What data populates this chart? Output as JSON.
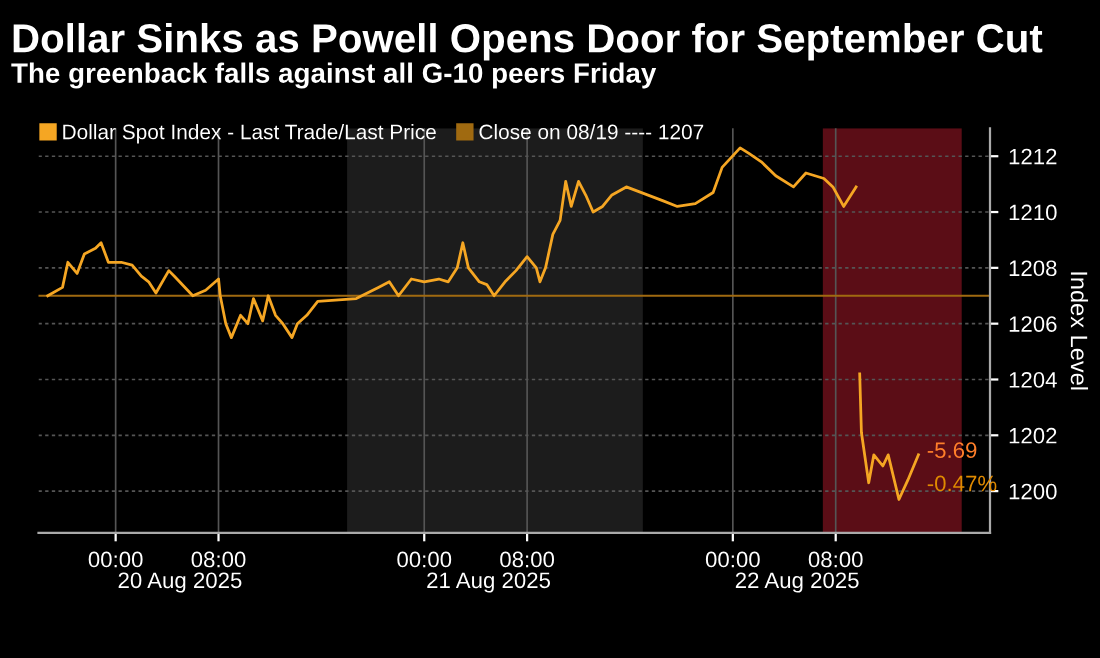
{
  "chart_data": {
    "type": "line",
    "title": "Dollar Sinks as Powell Opens Door for September Cut",
    "subtitle": "The greenback falls against all G-10 peers Friday",
    "ylabel": "Index Level",
    "series": [
      {
        "name": "Dollar Spot Index - Last Trade/Last Price",
        "color": "#f5a623",
        "x": [
          "2025-08-19T18:43",
          "2025-08-19T19:52",
          "2025-08-19T20:17",
          "2025-08-19T21:00",
          "2025-08-19T21:34",
          "2025-08-19T22:26",
          "2025-08-19T22:52",
          "2025-08-19T23:26",
          "2025-08-20T00:26",
          "2025-08-20T01:17",
          "2025-08-20T02:00",
          "2025-08-20T02:34",
          "2025-08-20T03:08",
          "2025-08-20T04:08",
          "2025-08-20T04:34",
          "2025-08-20T06:00",
          "2025-08-20T07:00",
          "2025-08-20T08:00",
          "2025-08-20T08:08",
          "2025-08-20T08:34",
          "2025-08-20T09:00",
          "2025-08-20T09:43",
          "2025-08-20T10:17",
          "2025-08-20T10:43",
          "2025-08-20T11:26",
          "2025-08-20T11:52",
          "2025-08-20T12:26",
          "2025-08-20T13:00",
          "2025-08-20T13:43",
          "2025-08-20T14:08",
          "2025-08-20T14:52",
          "2025-08-20T15:43",
          "2025-08-20T18:43",
          "2025-08-20T20:26",
          "2025-08-20T21:17",
          "2025-08-20T22:00",
          "2025-08-20T23:00",
          "2025-08-21T00:00",
          "2025-08-21T01:08",
          "2025-08-21T01:52",
          "2025-08-21T02:34",
          "2025-08-21T03:00",
          "2025-08-21T03:26",
          "2025-08-21T04:17",
          "2025-08-21T04:52",
          "2025-08-21T05:26",
          "2025-08-21T06:17",
          "2025-08-21T07:08",
          "2025-08-21T08:00",
          "2025-08-21T08:43",
          "2025-08-21T09:00",
          "2025-08-21T09:26",
          "2025-08-21T10:00",
          "2025-08-21T10:34",
          "2025-08-21T11:00",
          "2025-08-21T11:26",
          "2025-08-21T12:00",
          "2025-08-21T12:34",
          "2025-08-21T13:08",
          "2025-08-21T13:52",
          "2025-08-21T14:34",
          "2025-08-21T15:43",
          "2025-08-21T18:35",
          "2025-08-21T19:41",
          "2025-08-21T21:05",
          "2025-08-21T22:28",
          "2025-08-21T23:10",
          "2025-08-22T00:34",
          "2025-08-22T01:15",
          "2025-08-22T02:13",
          "2025-08-22T03:20",
          "2025-08-22T04:43",
          "2025-08-22T05:41",
          "2025-08-22T07:05",
          "2025-08-22T07:47",
          "2025-08-22T08:37",
          "2025-08-22T09:35",
          "2025-08-22T09:39",
          "2025-08-22T09:52",
          "2025-08-22T10:00",
          "2025-08-22T10:34",
          "2025-08-22T10:58",
          "2025-08-22T11:40",
          "2025-08-22T12:05",
          "2025-08-22T12:55",
          "2025-08-22T13:37",
          "2025-08-22T14:26"
        ],
        "values": [
          1207.0,
          1207.3,
          1208.2,
          1207.8,
          1208.5,
          1208.7,
          1208.9,
          1208.2,
          1208.2,
          1208.1,
          1207.7,
          1207.5,
          1207.1,
          1207.9,
          1207.7,
          1207.0,
          1207.2,
          1207.6,
          1207.0,
          1206.0,
          1205.5,
          1206.3,
          1206.0,
          1206.9,
          1206.1,
          1207.0,
          1206.3,
          1206.0,
          1205.5,
          1206.0,
          1206.3,
          1206.8,
          1206.9,
          1207.3,
          1207.5,
          1207.0,
          1207.6,
          1207.5,
          1207.6,
          1207.5,
          1208.0,
          1208.9,
          1208.0,
          1207.5,
          1207.4,
          1207.0,
          1207.5,
          1207.9,
          1208.4,
          1208.0,
          1207.5,
          1208.0,
          1209.2,
          1209.7,
          1211.1,
          1210.2,
          1211.1,
          1210.6,
          1210.0,
          1210.2,
          1210.6,
          1210.9,
          1210.4,
          1210.2,
          1210.3,
          1210.7,
          1211.6,
          1212.3,
          1212.1,
          1211.8,
          1211.3,
          1210.9,
          1211.4,
          1211.2,
          1210.9,
          1210.2,
          1210.9,
          null,
          1204.2,
          1202.1,
          1200.3,
          1201.3,
          1200.9,
          1201.3,
          1199.7,
          1200.4,
          1201.3
        ]
      }
    ],
    "xlim": [
      "2025-08-19T18:00",
      "2025-08-22T20:00"
    ],
    "ylim": [
      1198.5,
      1213
    ],
    "yticks": [
      1200,
      1202,
      1204,
      1206,
      1208,
      1210,
      1212
    ],
    "xticks": [
      {
        "value": "2025-08-20T00:00",
        "label": "00:00"
      },
      {
        "value": "2025-08-20T08:00",
        "label": "08:00"
      },
      {
        "value": "2025-08-21T00:00",
        "label": "00:00"
      },
      {
        "value": "2025-08-21T08:00",
        "label": "08:00"
      },
      {
        "value": "2025-08-22T00:00",
        "label": "00:00"
      },
      {
        "value": "2025-08-22T08:00",
        "label": "08:00"
      }
    ],
    "x2lim": [
      "2025-08-19T18:00",
      "2025-08-22T20:00"
    ],
    "x2ticks": [
      {
        "value": "2025-08-20T05:00",
        "label": "20 Aug 2025"
      },
      {
        "value": "2025-08-21T05:00",
        "label": "21 Aug 2025"
      },
      {
        "value": "2025-08-22T05:00",
        "label": "22 Aug 2025"
      }
    ],
    "ref_lines": [
      {
        "axis": "y",
        "value": 1207,
        "label": "Close on 08/19 ---- 1207",
        "color": "#a06a10"
      }
    ],
    "bands": [
      {
        "axis": "x",
        "from": "2025-08-20T18:00",
        "to": "2025-08-21T17:00",
        "color": "#1c1c1c"
      },
      {
        "axis": "x",
        "from": "2025-08-22T07:00",
        "to": "2025-08-22T17:48",
        "color": "#6b0f1a"
      }
    ],
    "annotations": [
      {
        "text": "-5.69",
        "x": "2025-08-22T14:26",
        "y": 1201.3
      },
      {
        "text": "-0.47%",
        "x": "2025-08-22T14:26",
        "y": 1201.3
      }
    ],
    "grid": true,
    "legend": "top left"
  }
}
